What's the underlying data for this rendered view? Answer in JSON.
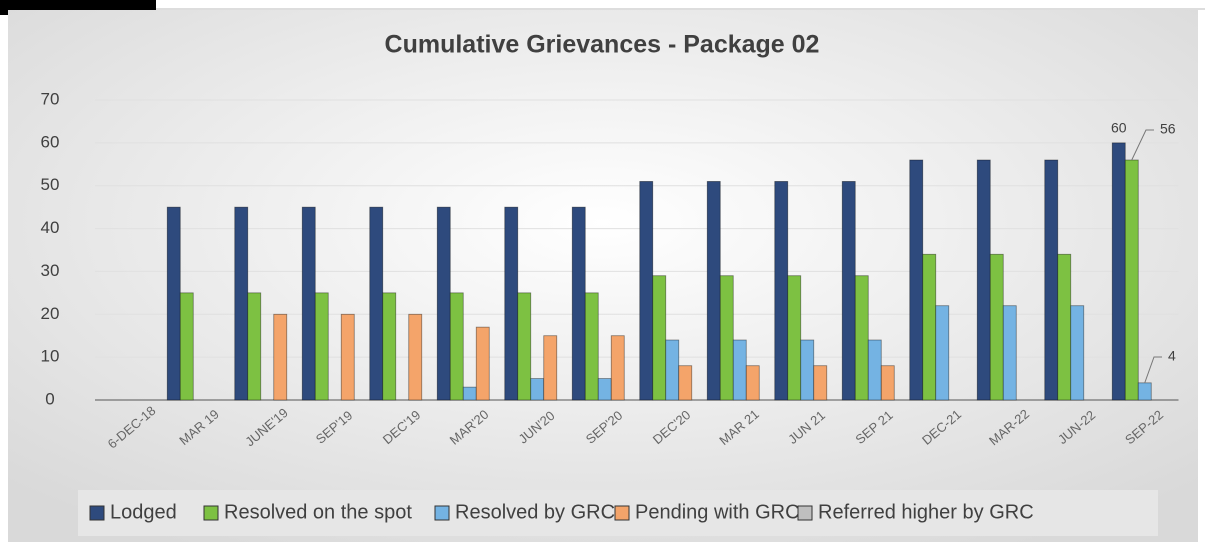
{
  "chart_data": {
    "type": "bar",
    "title": "Cumulative Grievances - Package 02",
    "categories": [
      "6-DEC-18",
      "MAR 19",
      "JUNE'19",
      "SEP'19",
      "DEC'19",
      "MAR'20",
      "JUN'20",
      "SEP'20",
      "DEC'20",
      "MAR 21",
      "JUN 21",
      "SEP 21",
      "DEC-21",
      "MAR-22",
      "JUN-22",
      "SEP-22"
    ],
    "series": [
      {
        "name": "Lodged",
        "color": "#2e4a7d",
        "values": [
          0,
          45,
          45,
          45,
          45,
          45,
          45,
          45,
          51,
          51,
          51,
          51,
          56,
          56,
          56,
          60
        ]
      },
      {
        "name": "Resolved on the spot",
        "color": "#7dc142",
        "values": [
          0,
          25,
          25,
          25,
          25,
          25,
          25,
          25,
          29,
          29,
          29,
          29,
          34,
          34,
          34,
          56
        ]
      },
      {
        "name": "Resolved by GRC",
        "color": "#74b3e3",
        "values": [
          0,
          0,
          0,
          0,
          0,
          3,
          5,
          5,
          14,
          14,
          14,
          14,
          22,
          22,
          22,
          4
        ]
      },
      {
        "name": "Pending with GRC",
        "color": "#f4a46a",
        "values": [
          0,
          0,
          20,
          20,
          20,
          17,
          15,
          15,
          8,
          8,
          8,
          8,
          0,
          0,
          0,
          0
        ]
      },
      {
        "name": "Referred higher by GRC",
        "color": "#bfbfbf",
        "values": [
          0,
          0,
          0,
          0,
          0,
          0,
          0,
          0,
          0,
          0,
          0,
          0,
          0,
          0,
          0,
          0
        ]
      }
    ],
    "ylim": [
      0,
      70
    ],
    "yticks": [
      0,
      10,
      20,
      30,
      40,
      50,
      60,
      70
    ],
    "grid": true,
    "legend": "bottom"
  }
}
